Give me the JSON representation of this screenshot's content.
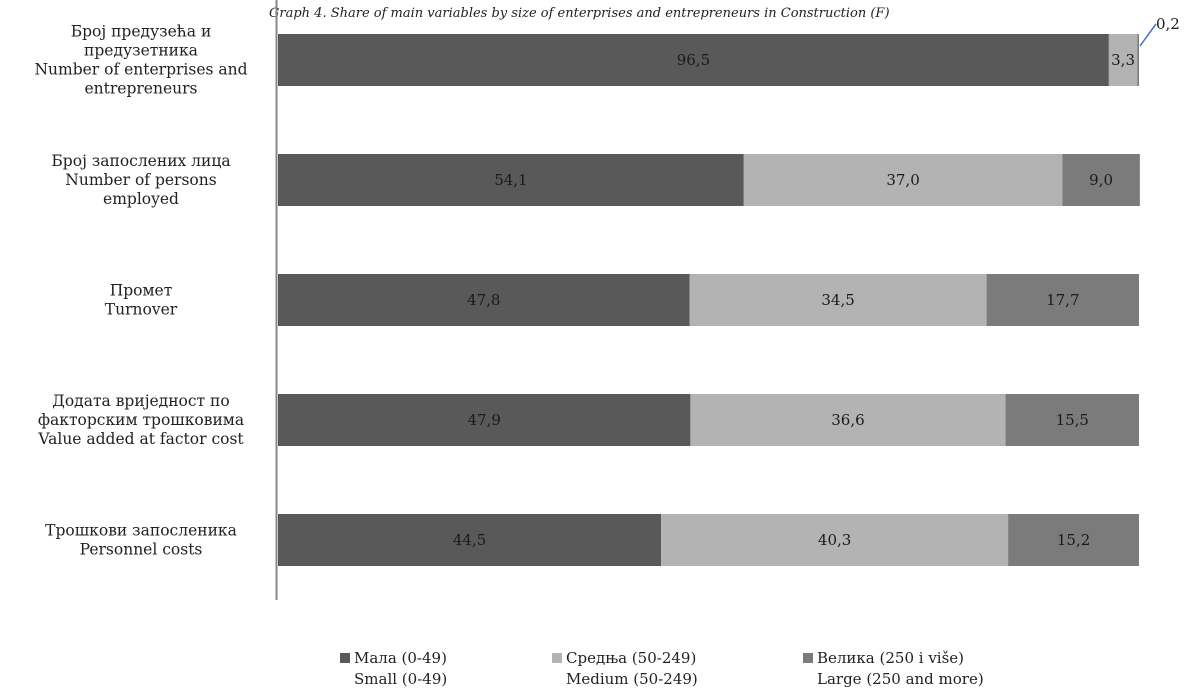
{
  "chart_data": {
    "type": "bar",
    "orientation": "horizontal",
    "stacked": true,
    "title": "Graph 4.  Share of main variables by size of enterprises and entrepreneurs in Construction (F)",
    "categories": [
      [
        "Број предузећа и",
        "предузетника",
        "Number of enterprises and",
        "entrepreneurs"
      ],
      [
        "Број запослених лица",
        "Number of persons",
        "employed"
      ],
      [
        "Промет",
        "Turnover"
      ],
      [
        "Додата вриједност по",
        "факторским трошковима",
        "Value added at factor cost"
      ],
      [
        "Трошкови запосленика",
        "Personnel costs"
      ]
    ],
    "series": [
      {
        "name": [
          "Мала (0-49)",
          "Small (0-49)"
        ],
        "color": "#595959",
        "values": [
          96.5,
          54.1,
          47.8,
          47.9,
          44.5
        ],
        "labels": [
          "96,5",
          "54,1",
          "47,8",
          "47,9",
          "44,5"
        ]
      },
      {
        "name": [
          "Средња  (50-249)",
          "Medium (50-249)"
        ],
        "color": "#b3b3b3",
        "values": [
          3.3,
          37.0,
          34.5,
          36.6,
          40.3
        ],
        "labels": [
          "3,3",
          "37,0",
          "34,5",
          "36,6",
          "40,3"
        ]
      },
      {
        "name": [
          "Велика (250 i više)",
          "Large (250 and more)"
        ],
        "color": "#7b7b7b",
        "values": [
          0.2,
          9.0,
          17.7,
          15.5,
          15.2
        ],
        "labels": [
          "0,2",
          "9,0",
          "17,7",
          "15,5",
          "15,2"
        ]
      }
    ],
    "xlim": [
      0,
      100
    ],
    "grid": false,
    "legend_position": "bottom"
  }
}
